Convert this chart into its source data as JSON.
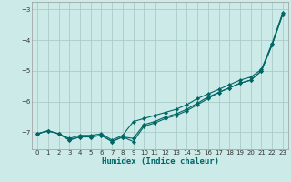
{
  "xlabel": "Humidex (Indice chaleur)",
  "bg_color": "#cceae7",
  "grid_color": "#aaccc9",
  "line_color": "#006666",
  "xlim": [
    -0.5,
    23.5
  ],
  "ylim": [
    -7.55,
    -2.75
  ],
  "yticks": [
    -7,
    -6,
    -5,
    -4,
    -3
  ],
  "xticks": [
    0,
    1,
    2,
    3,
    4,
    5,
    6,
    7,
    8,
    9,
    10,
    11,
    12,
    13,
    14,
    15,
    16,
    17,
    18,
    19,
    20,
    21,
    22,
    23
  ],
  "series1_x": [
    0,
    1,
    2,
    3,
    4,
    5,
    6,
    7,
    8,
    9,
    10,
    11,
    12,
    13,
    14,
    15,
    16,
    17,
    18,
    19,
    20,
    21,
    22,
    23
  ],
  "series1_y": [
    -7.05,
    -6.95,
    -7.05,
    -7.2,
    -7.1,
    -7.1,
    -7.05,
    -7.25,
    -7.1,
    -6.65,
    -6.55,
    -6.45,
    -6.35,
    -6.25,
    -6.1,
    -5.9,
    -5.75,
    -5.6,
    -5.45,
    -5.3,
    -5.2,
    -4.95,
    -4.1,
    -3.1
  ],
  "series2_x": [
    0,
    1,
    2,
    3,
    4,
    5,
    6,
    7,
    8,
    9,
    10,
    11,
    12,
    13,
    14,
    15,
    16,
    17,
    18,
    19,
    20,
    21,
    22,
    23
  ],
  "series2_y": [
    -7.05,
    -6.95,
    -7.05,
    -7.25,
    -7.15,
    -7.15,
    -7.1,
    -7.3,
    -7.15,
    -7.2,
    -6.75,
    -6.65,
    -6.5,
    -6.4,
    -6.25,
    -6.05,
    -5.85,
    -5.7,
    -5.55,
    -5.4,
    -5.3,
    -5.0,
    -4.15,
    -3.15
  ],
  "series3_x": [
    0,
    1,
    2,
    3,
    4,
    5,
    6,
    7,
    8,
    9,
    10,
    11,
    12,
    13,
    14,
    15,
    16,
    17,
    18,
    19,
    20,
    21,
    22,
    23
  ],
  "series3_y": [
    -7.05,
    -6.95,
    -7.05,
    -7.25,
    -7.15,
    -7.15,
    -7.1,
    -7.3,
    -7.15,
    -7.3,
    -6.8,
    -6.7,
    -6.55,
    -6.45,
    -6.3,
    -6.1,
    -5.9,
    -5.7,
    -5.55,
    -5.4,
    -5.3,
    -5.0,
    -4.15,
    -3.15
  ]
}
